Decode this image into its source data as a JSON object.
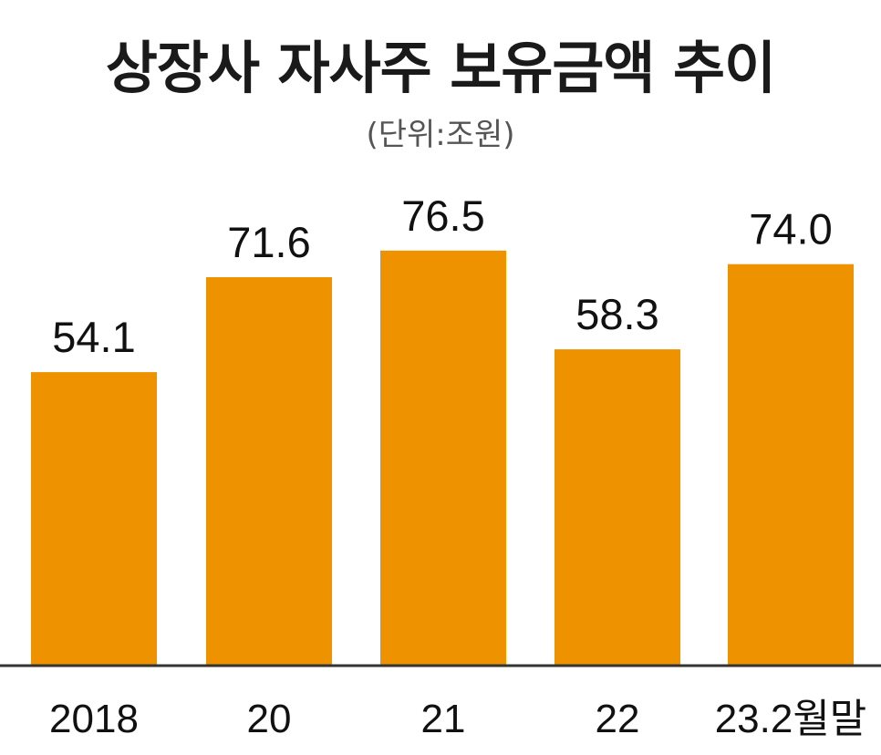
{
  "chart_data": {
    "type": "bar",
    "title": "상장사 자사주 보유금액 추이",
    "subtitle": "(단위:조원)",
    "categories": [
      "2018",
      "20",
      "21",
      "22",
      "23.2월말"
    ],
    "values": [
      54.1,
      71.6,
      76.5,
      58.3,
      74.0
    ],
    "value_labels": [
      "54.1",
      "71.6",
      "76.5",
      "58.3",
      "74.0"
    ],
    "xlabel": "",
    "ylabel": "",
    "ylim": [
      0,
      90
    ],
    "grid": false,
    "legend": "none",
    "bar_color": "#EF9200",
    "axis_color": "#333333"
  }
}
